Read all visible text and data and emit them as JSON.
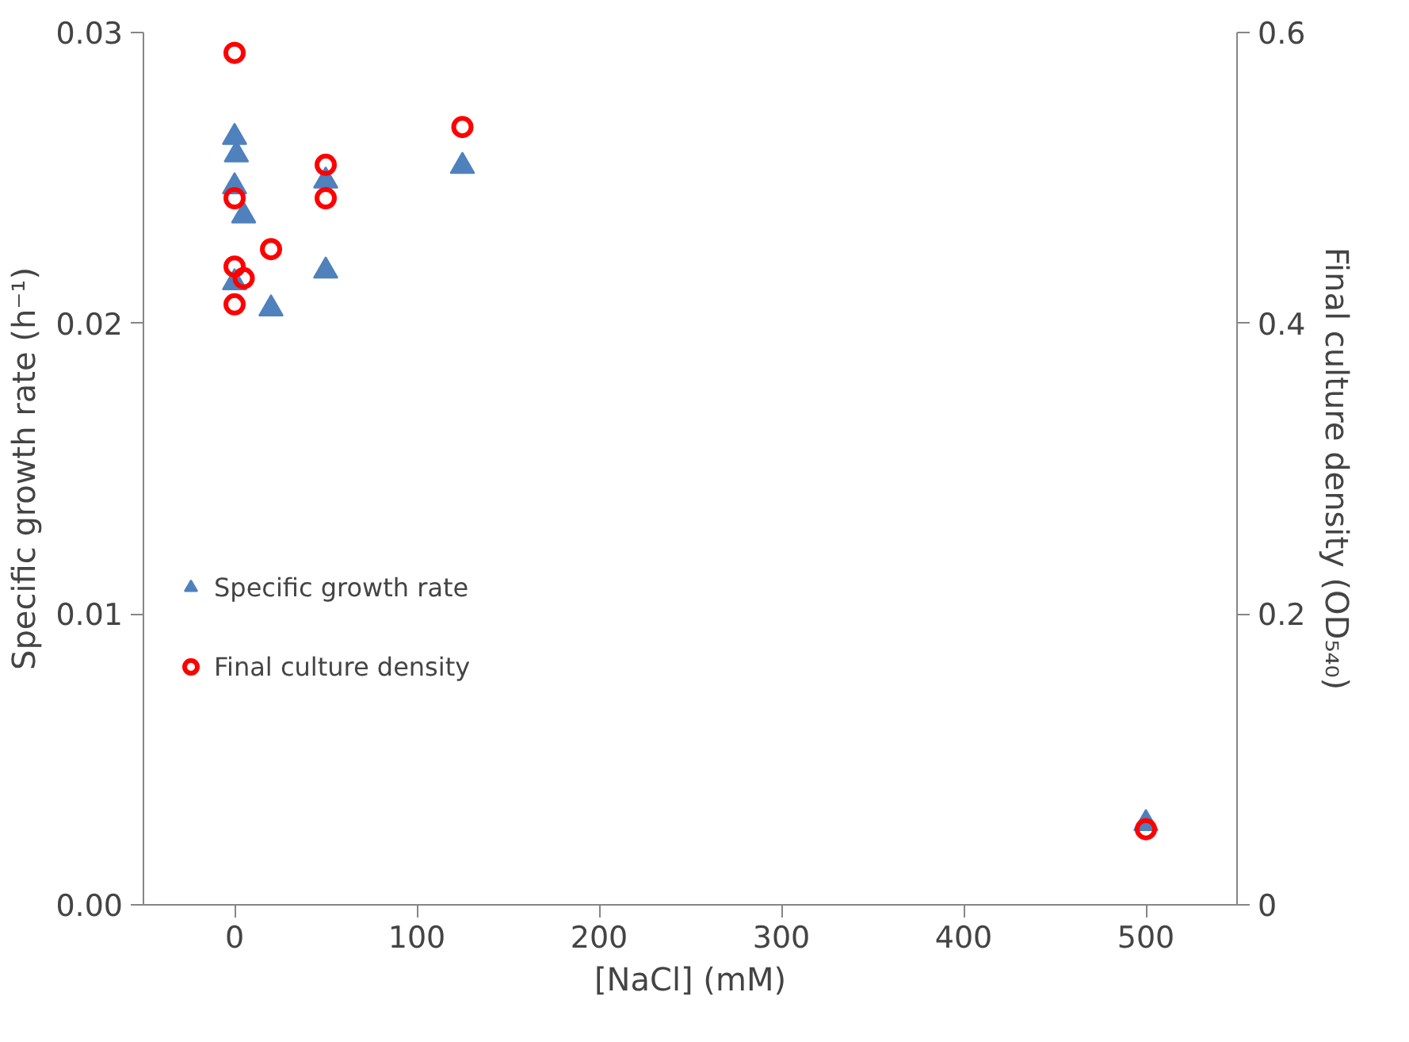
{
  "chart_data": {
    "type": "scatter",
    "xlabel": "[NaCl] (mM)",
    "ylabel": "Specific growth rate (h⁻¹)",
    "y2label": "Final culture density (OD₅₄₀)",
    "xlim": [
      -50,
      550
    ],
    "xticks": [
      0,
      100,
      200,
      300,
      400,
      500
    ],
    "ylim": [
      0,
      0.03
    ],
    "yticks": [
      {
        "value": 0,
        "label": "0.00"
      },
      {
        "value": 0.01,
        "label": "0.01"
      },
      {
        "value": 0.02,
        "label": "0.02"
      },
      {
        "value": 0.03,
        "label": "0.03"
      }
    ],
    "y2lim": [
      0,
      0.6
    ],
    "y2ticks": [
      0,
      0.2,
      0.4,
      0.6
    ],
    "grid": false,
    "legend": "left",
    "series": [
      {
        "name": "Specific growth rate",
        "color": "#4f81bd",
        "marker": "triangle",
        "x": [
          0,
          1,
          0,
          5,
          0,
          20,
          50,
          50,
          125,
          500
        ],
        "values": [
          0.0264,
          0.0258,
          0.0247,
          0.0237,
          0.0214,
          0.0205,
          0.0249,
          0.0218,
          0.0254,
          0.0028
        ]
      },
      {
        "name": "Final culture density",
        "color": "#ff0000",
        "marker": "circle",
        "axis": "y2",
        "x": [
          0,
          125,
          50,
          50,
          0,
          20,
          0,
          5,
          0,
          500
        ],
        "values": [
          0.586,
          0.535,
          0.509,
          0.486,
          0.486,
          0.451,
          0.439,
          0.431,
          0.413,
          0.052
        ]
      }
    ]
  }
}
